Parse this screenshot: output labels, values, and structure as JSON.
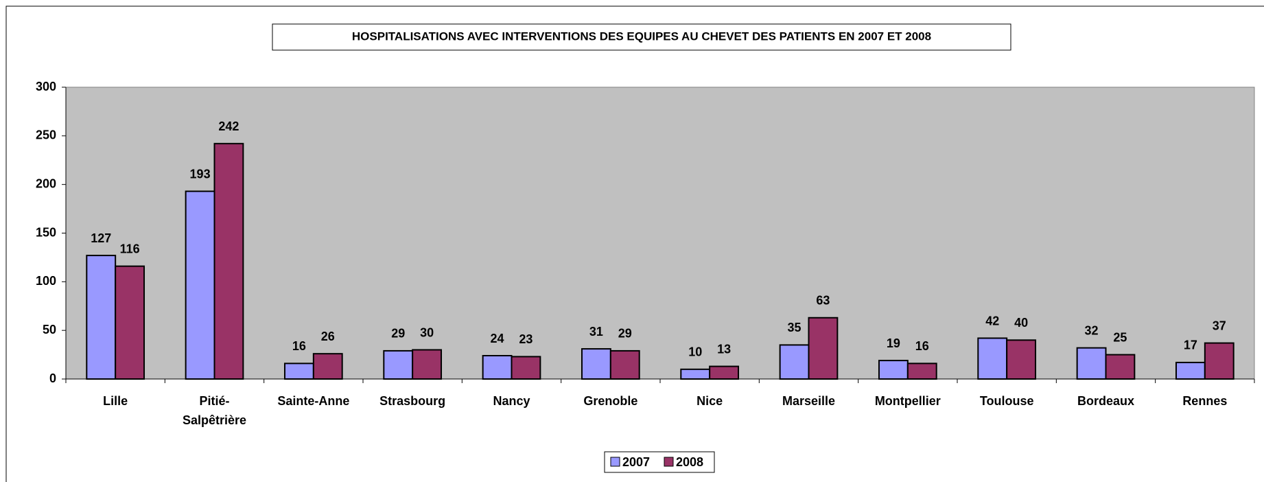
{
  "chart_data": {
    "type": "bar",
    "title": "HOSPITALISATIONS AVEC INTERVENTIONS DES EQUIPES AU CHEVET DES PATIENTS EN 2007 ET 2008",
    "categories": [
      "Lille",
      "Pitié-Salpêtrière",
      "Sainte-Anne",
      "Strasbourg",
      "Nancy",
      "Grenoble",
      "Nice",
      "Marseille",
      "Montpellier",
      "Toulouse",
      "Bordeaux",
      "Rennes"
    ],
    "series": [
      {
        "name": "2007",
        "color": "#9999ff",
        "values": [
          127,
          193,
          16,
          29,
          24,
          31,
          10,
          35,
          19,
          42,
          32,
          17
        ]
      },
      {
        "name": "2008",
        "color": "#993366",
        "values": [
          116,
          242,
          26,
          30,
          23,
          29,
          13,
          63,
          16,
          40,
          25,
          37
        ]
      }
    ],
    "ylim": [
      0,
      300
    ],
    "yticks": [
      0,
      50,
      100,
      150,
      200,
      250,
      300
    ],
    "plot_background": "#c0c0c0",
    "legend": "bottom"
  }
}
